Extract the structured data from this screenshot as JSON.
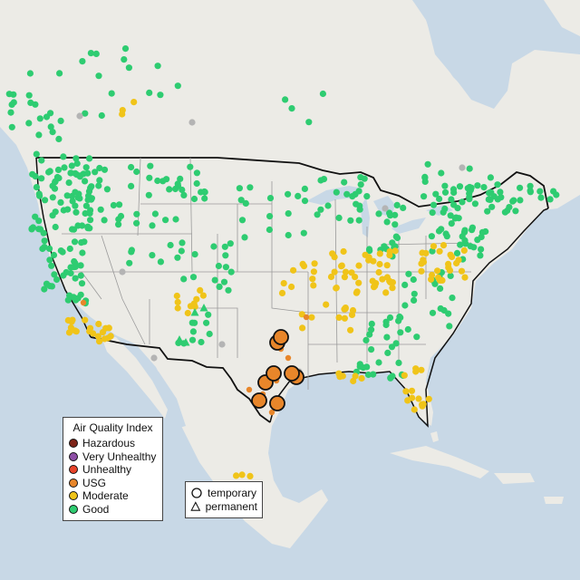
{
  "legend_aqi": {
    "title": "Air Quality Index",
    "items": [
      {
        "label": "Hazardous",
        "color": "#7e2418"
      },
      {
        "label": "Very Unhealthy",
        "color": "#8e4fa6"
      },
      {
        "label": "Unhealthy",
        "color": "#e8442a"
      },
      {
        "label": "USG",
        "color": "#e8862a"
      },
      {
        "label": "Moderate",
        "color": "#f0c419"
      },
      {
        "label": "Good",
        "color": "#2ecc71"
      }
    ]
  },
  "legend_monitor": {
    "items": [
      {
        "label": "temporary",
        "shape": "circle"
      },
      {
        "label": "permanent",
        "shape": "triangle"
      }
    ]
  },
  "colors": {
    "ocean": "#c8d8e6",
    "land": "#ecebe6",
    "country_border": "#111111",
    "state_border": "#9a9a9a",
    "unknown_station": "#b4b4b4"
  }
}
